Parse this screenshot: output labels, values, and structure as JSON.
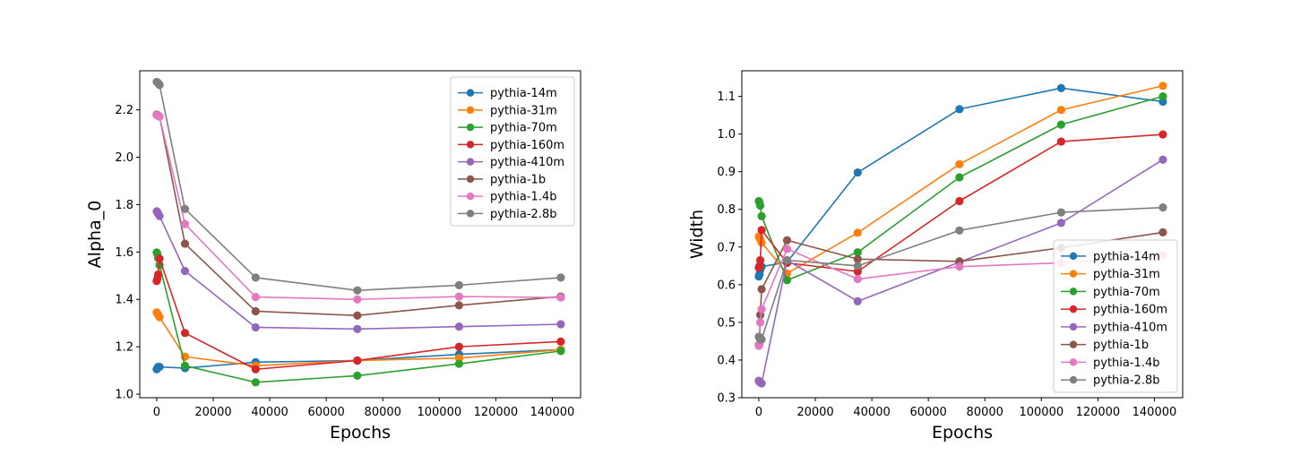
{
  "chart_data": [
    {
      "type": "line",
      "xlabel": "Epochs",
      "ylabel": "Alpha_0",
      "xlim": [
        -6000,
        150000
      ],
      "ylim": [
        0.985,
        2.365
      ],
      "xticks": [
        0,
        20000,
        40000,
        60000,
        80000,
        100000,
        120000,
        140000
      ],
      "xtick_labels": [
        "0",
        "20000",
        "40000",
        "60000",
        "80000",
        "100000",
        "120000",
        "140000"
      ],
      "yticks": [
        1.0,
        1.2,
        1.4,
        1.6,
        1.8,
        2.0,
        2.2
      ],
      "ytick_labels": [
        "1.0",
        "1.2",
        "1.4",
        "1.6",
        "1.8",
        "2.0",
        "2.2"
      ],
      "grid": false,
      "legend_position": "top-right",
      "x": [
        0,
        256,
        512,
        1000,
        10000,
        35000,
        71000,
        107000,
        143000
      ],
      "series": [
        {
          "name": "pythia-14m",
          "color": "#1f77b4",
          "values": [
            1.105,
            1.11,
            1.115,
            1.115,
            1.11,
            1.135,
            1.142,
            1.168,
            1.188
          ]
        },
        {
          "name": "pythia-31m",
          "color": "#ff7f0e",
          "values": [
            1.345,
            1.34,
            1.335,
            1.325,
            1.158,
            1.12,
            1.142,
            1.152,
            1.188
          ]
        },
        {
          "name": "pythia-70m",
          "color": "#2ca02c",
          "values": [
            1.598,
            1.592,
            1.575,
            1.545,
            1.12,
            1.05,
            1.078,
            1.128,
            1.182
          ]
        },
        {
          "name": "pythia-160m",
          "color": "#d62728",
          "values": [
            1.478,
            1.488,
            1.505,
            1.572,
            1.258,
            1.105,
            1.142,
            1.2,
            1.222
          ]
        },
        {
          "name": "pythia-410m",
          "color": "#9467bd",
          "values": [
            1.772,
            1.768,
            1.762,
            1.752,
            1.52,
            1.282,
            1.275,
            1.285,
            1.295
          ]
        },
        {
          "name": "pythia-1b",
          "color": "#8c564b",
          "values": [
            2.18,
            2.178,
            2.176,
            2.172,
            1.635,
            1.35,
            1.332,
            1.375,
            1.412
          ]
        },
        {
          "name": "pythia-1.4b",
          "color": "#e377c2",
          "values": [
            2.178,
            2.176,
            2.175,
            2.172,
            1.718,
            1.41,
            1.4,
            1.412,
            1.408
          ]
        },
        {
          "name": "pythia-2.8b",
          "color": "#7f7f7f",
          "values": [
            2.318,
            2.316,
            2.312,
            2.305,
            1.782,
            1.492,
            1.438,
            1.46,
            1.492
          ]
        }
      ]
    },
    {
      "type": "line",
      "xlabel": "Epochs",
      "ylabel": "Width",
      "xlim": [
        -6000,
        150000
      ],
      "ylim": [
        0.3,
        1.168
      ],
      "xticks": [
        0,
        20000,
        40000,
        60000,
        80000,
        100000,
        120000,
        140000
      ],
      "xtick_labels": [
        "0",
        "20000",
        "40000",
        "60000",
        "80000",
        "100000",
        "120000",
        "140000"
      ],
      "yticks": [
        0.3,
        0.4,
        0.5,
        0.6,
        0.7,
        0.8,
        0.9,
        1.0,
        1.1
      ],
      "ytick_labels": [
        "0.3",
        "0.4",
        "0.5",
        "0.6",
        "0.7",
        "0.8",
        "0.9",
        "1.0",
        "1.1"
      ],
      "grid": false,
      "legend_position": "bottom-right",
      "x": [
        0,
        256,
        512,
        1000,
        10000,
        35000,
        71000,
        107000,
        143000
      ],
      "series": [
        {
          "name": "pythia-14m",
          "color": "#1f77b4",
          "values": [
            0.622,
            0.628,
            0.64,
            0.648,
            0.66,
            0.898,
            1.066,
            1.122,
            1.086
          ]
        },
        {
          "name": "pythia-31m",
          "color": "#ff7f0e",
          "values": [
            0.728,
            0.725,
            0.72,
            0.712,
            0.63,
            0.738,
            0.92,
            1.064,
            1.128
          ]
        },
        {
          "name": "pythia-70m",
          "color": "#2ca02c",
          "values": [
            0.822,
            0.818,
            0.81,
            0.782,
            0.612,
            0.686,
            0.885,
            1.025,
            1.1
          ]
        },
        {
          "name": "pythia-160m",
          "color": "#d62728",
          "values": [
            0.645,
            0.65,
            0.665,
            0.745,
            0.658,
            0.635,
            0.822,
            0.98,
            0.999
          ]
        },
        {
          "name": "pythia-410m",
          "color": "#9467bd",
          "values": [
            0.345,
            0.342,
            0.34,
            0.338,
            0.665,
            0.556,
            0.66,
            0.764,
            0.932
          ]
        },
        {
          "name": "pythia-1b",
          "color": "#8c564b",
          "values": [
            0.44,
            0.46,
            0.52,
            0.588,
            0.718,
            0.668,
            0.662,
            0.698,
            0.739
          ]
        },
        {
          "name": "pythia-1.4b",
          "color": "#e377c2",
          "values": [
            0.438,
            0.442,
            0.5,
            0.535,
            0.695,
            0.615,
            0.648,
            0.658,
            0.678
          ]
        },
        {
          "name": "pythia-2.8b",
          "color": "#7f7f7f",
          "values": [
            0.462,
            0.458,
            0.455,
            0.455,
            0.665,
            0.65,
            0.744,
            0.792,
            0.805
          ]
        }
      ]
    }
  ]
}
